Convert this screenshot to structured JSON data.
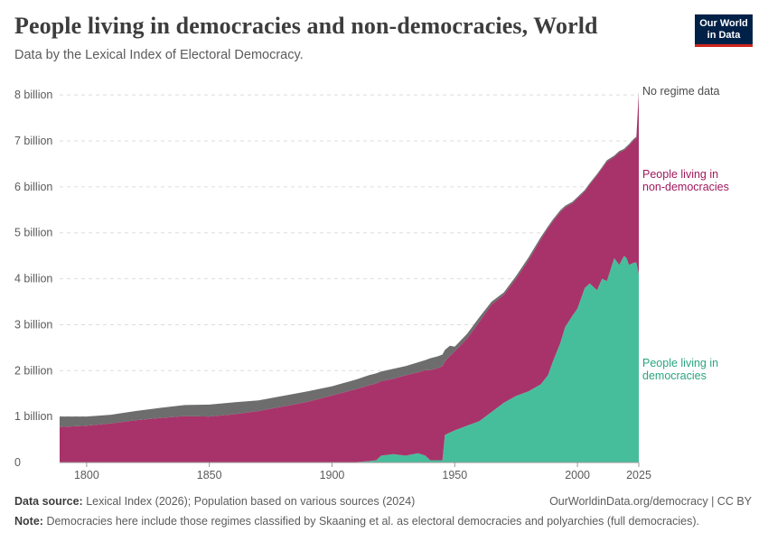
{
  "header": {
    "title": "People living in democracies and non-democracies, World",
    "subtitle": "Data by the Lexical Index of Electoral Democracy.",
    "logo_line1": "Our World",
    "logo_line2": "in Data"
  },
  "footer": {
    "source_label": "Data source:",
    "source_text": "Lexical Index (2026); Population based on various sources (2024)",
    "credit": "OurWorldinData.org/democracy | CC BY",
    "note_label": "Note:",
    "note_text": "Democracies here include those regimes classified by Skaaning et al. as electoral democracies and polyarchies (full democracies)."
  },
  "chart_data": {
    "type": "area",
    "stacked": true,
    "title": "People living in democracies and non-democracies, World",
    "subtitle": "Data by the Lexical Index of Electoral Democracy.",
    "xlim": [
      1789,
      2025
    ],
    "ylim": [
      0,
      8.2
    ],
    "y_ticks": [
      {
        "value": 0,
        "label": "0"
      },
      {
        "value": 1,
        "label": "1 billion"
      },
      {
        "value": 2,
        "label": "2 billion"
      },
      {
        "value": 3,
        "label": "3 billion"
      },
      {
        "value": 4,
        "label": "4 billion"
      },
      {
        "value": 5,
        "label": "5 billion"
      },
      {
        "value": 6,
        "label": "6 billion"
      },
      {
        "value": 7,
        "label": "7 billion"
      },
      {
        "value": 8,
        "label": "8 billion"
      }
    ],
    "x_ticks": [
      {
        "value": 1800,
        "label": "1800"
      },
      {
        "value": 1850,
        "label": "1850"
      },
      {
        "value": 1900,
        "label": "1900"
      },
      {
        "value": 1950,
        "label": "1950"
      },
      {
        "value": 2000,
        "label": "2000"
      },
      {
        "value": 2025,
        "label": "2025"
      }
    ],
    "grid": true,
    "legend": "right",
    "colors": {
      "democracies": "#47be9b",
      "non_democracies": "#a8336a",
      "no_data": "#6d6d6d",
      "non_democracies_label": "#a0185d",
      "democracies_label": "#2aa580",
      "no_data_label": "#4a4a4a",
      "grid": "#dddddd"
    },
    "x": [
      1789,
      1800,
      1810,
      1820,
      1830,
      1840,
      1850,
      1860,
      1870,
      1880,
      1890,
      1900,
      1910,
      1915,
      1918,
      1920,
      1925,
      1930,
      1935,
      1938,
      1940,
      1943,
      1945,
      1946,
      1948,
      1950,
      1955,
      1960,
      1965,
      1970,
      1975,
      1980,
      1985,
      1988,
      1990,
      1993,
      1995,
      1998,
      2000,
      2003,
      2005,
      2008,
      2010,
      2012,
      2015,
      2017,
      2019,
      2020,
      2021,
      2023,
      2024,
      2025
    ],
    "series": [
      {
        "name": "People living in democracies",
        "values": [
          0,
          0,
          0,
          0,
          0,
          0,
          0,
          0,
          0,
          0,
          0,
          0,
          0.01,
          0.03,
          0.05,
          0.15,
          0.18,
          0.15,
          0.2,
          0.15,
          0.05,
          0.05,
          0.05,
          0.6,
          0.65,
          0.7,
          0.8,
          0.9,
          1.1,
          1.3,
          1.45,
          1.55,
          1.7,
          1.9,
          2.2,
          2.6,
          2.95,
          3.2,
          3.35,
          3.8,
          3.9,
          3.75,
          4.0,
          3.95,
          4.45,
          4.3,
          4.5,
          4.45,
          4.3,
          4.35,
          4.35,
          4.1
        ]
      },
      {
        "name": "People living in non-democracies",
        "values": [
          0.77,
          0.8,
          0.85,
          0.92,
          0.97,
          1.01,
          1.0,
          1.05,
          1.12,
          1.22,
          1.32,
          1.46,
          1.59,
          1.65,
          1.67,
          1.62,
          1.64,
          1.75,
          1.76,
          1.86,
          1.96,
          2.0,
          2.05,
          1.6,
          1.67,
          1.72,
          1.9,
          2.16,
          2.34,
          2.35,
          2.55,
          2.85,
          3.15,
          3.2,
          3.05,
          2.85,
          2.6,
          2.45,
          2.4,
          2.1,
          2.15,
          2.5,
          2.4,
          2.6,
          2.2,
          2.45,
          2.3,
          2.4,
          2.6,
          2.67,
          2.71,
          3.95
        ]
      },
      {
        "name": "No regime data",
        "values": [
          0.23,
          0.2,
          0.19,
          0.2,
          0.22,
          0.24,
          0.26,
          0.26,
          0.23,
          0.23,
          0.23,
          0.2,
          0.21,
          0.22,
          0.22,
          0.21,
          0.22,
          0.2,
          0.22,
          0.22,
          0.26,
          0.26,
          0.25,
          0.25,
          0.22,
          0.1,
          0.1,
          0.1,
          0.06,
          0.05,
          0.06,
          0.06,
          0.05,
          0.04,
          0.04,
          0.04,
          0.04,
          0.03,
          0.03,
          0.03,
          0.03,
          0.03,
          0.03,
          0.03,
          0.03,
          0.03,
          0.03,
          0.03,
          0.03,
          0.03,
          0.03,
          0.03
        ]
      }
    ],
    "series_labels": [
      {
        "key": "no_data",
        "lines": [
          "No regime data"
        ]
      },
      {
        "key": "non_democracies",
        "lines": [
          "People living in",
          "non-democracies"
        ]
      },
      {
        "key": "democracies",
        "lines": [
          "People living in",
          "democracies"
        ]
      }
    ]
  }
}
